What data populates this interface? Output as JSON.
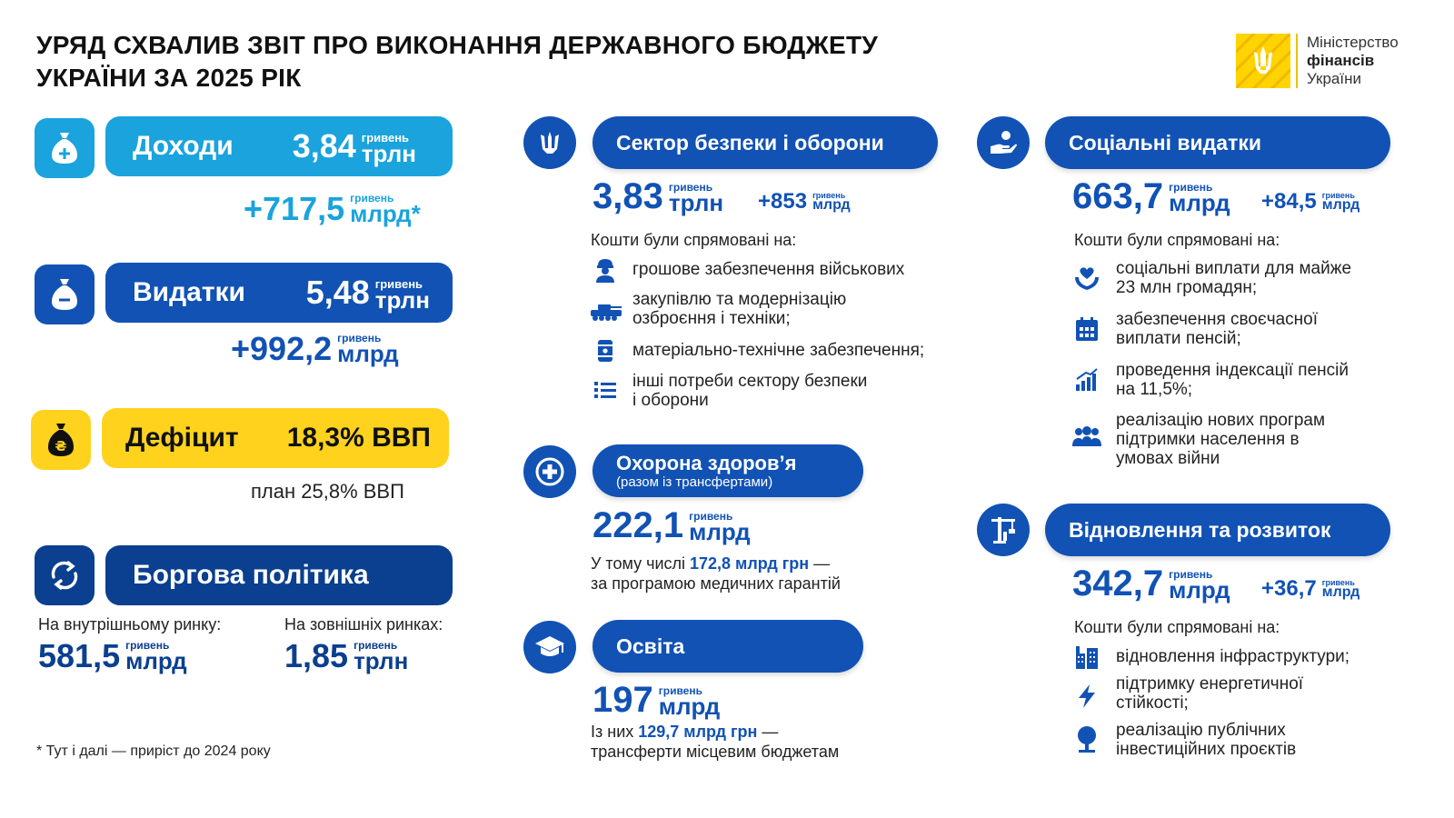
{
  "title": {
    "line1": "УРЯД СХВАЛИВ ЗВІТ ПРО ВИКОНАННЯ ДЕРЖАВНОГО БЮДЖЕТУ",
    "line2": "УКРАЇНИ ЗА 2025 РІК"
  },
  "logo": {
    "line1": "Міністерство",
    "line2": "фінансів",
    "line3": "України"
  },
  "currency_small": "гривень",
  "revenue": {
    "label": "Доходи",
    "value": "3,84",
    "unit": "трлн",
    "increase": "+717,5",
    "increase_unit": "млрд*"
  },
  "expenditure": {
    "label": "Видатки",
    "value": "5,48",
    "unit": "трлн",
    "increase": "+992,2",
    "increase_unit": "млрд"
  },
  "deficit": {
    "label": "Дефіцит",
    "value": "18,3% ВВП",
    "plan": "план 25,8% ВВП"
  },
  "debt": {
    "label": "Боргова політика",
    "domestic_label": "На внутрішньому ринку:",
    "domestic_value": "581,5",
    "domestic_unit": "млрд",
    "external_label": "На зовнішніх ринках:",
    "external_value": "1,85",
    "external_unit": "трлн"
  },
  "footnote": "* Тут і далі — приріст до 2024 року",
  "defense": {
    "title": "Сектор безпеки і оборони",
    "value": "3,83",
    "unit": "трлн",
    "increase": "+853",
    "increase_unit": "млрд",
    "directed": "Кошти були спрямовані на:",
    "items": [
      {
        "icon": "soldier-icon",
        "line1": "грошове забезпечення військових",
        "line2": ""
      },
      {
        "icon": "tank-icon",
        "line1": "закупівлю та модернізацію",
        "line2": "озброєння і техніки;"
      },
      {
        "icon": "fuel-barrel-icon",
        "line1": "матеріально-технічне забезпечення;",
        "line2": ""
      },
      {
        "icon": "list-icon",
        "line1": "інші потреби сектору безпеки",
        "line2": "і оборони"
      }
    ]
  },
  "health": {
    "title": "Охорона здоров’я",
    "subtitle": "(разом із трансфертами)",
    "value": "222,1",
    "unit": "млрд",
    "note_prefix": "У тому числі ",
    "note_highlight": "172,8 млрд грн",
    "note_suffix": " —",
    "note_line2": "за програмою медичних гарантій"
  },
  "education": {
    "title": "Освіта",
    "value": "197",
    "unit": "млрд",
    "note_prefix": "Із них ",
    "note_highlight": "129,7 млрд грн",
    "note_suffix": " —",
    "note_line2": "трансферти місцевим бюджетам"
  },
  "social": {
    "title": "Соціальні видатки",
    "value": "663,7",
    "unit": "млрд",
    "increase": "+84,5",
    "increase_unit": "млрд",
    "directed": "Кошти були спрямовані на:",
    "items": [
      {
        "icon": "heart-hand-icon",
        "line1": "соціальні виплати для майже",
        "line2": "23 млн громадян;",
        "line3": ""
      },
      {
        "icon": "calendar-icon",
        "line1": "забезпечення своєчасної",
        "line2": "виплати пенсій;",
        "line3": ""
      },
      {
        "icon": "growth-chart-icon",
        "line1": "проведення індексації пенсій",
        "line2": "на 11,5%;",
        "line3": ""
      },
      {
        "icon": "people-icon",
        "line1": "реалізацію нових програм",
        "line2": "підтримки населення в",
        "line3": "умовах війни"
      }
    ]
  },
  "recovery": {
    "title": "Відновлення та розвиток",
    "value": "342,7",
    "unit": "млрд",
    "increase": "+36,7",
    "increase_unit": "млрд",
    "directed": "Кошти були спрямовані на:",
    "items": [
      {
        "icon": "buildings-icon",
        "line1": "відновлення інфраструктури;",
        "line2": ""
      },
      {
        "icon": "lightning-icon",
        "line1": "підтримку енергетичної",
        "line2": "стійкості;"
      },
      {
        "icon": "tree-icon",
        "line1": "реалізацію публічних",
        "line2": "інвестиційних проєктів"
      }
    ]
  },
  "colors": {
    "navy": "#1152b4",
    "cyan": "#1aa3dd",
    "yellow": "#ffd21e"
  }
}
